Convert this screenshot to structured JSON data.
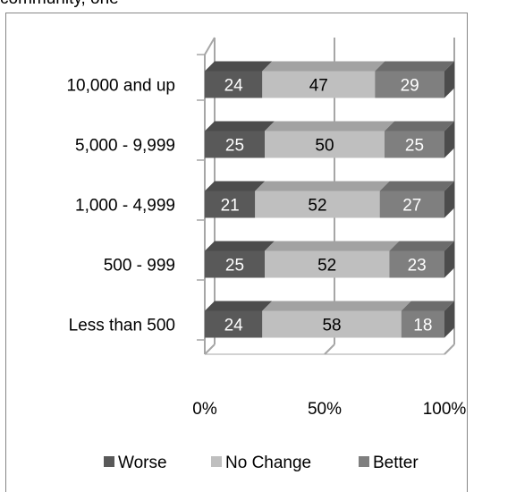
{
  "header_fragment": "community, one",
  "chart_data": {
    "type": "bar",
    "orientation": "horizontal",
    "stacked": "percent",
    "three_d": true,
    "categories": [
      "10,000 and up",
      "5,000 - 9,999",
      "1,000 - 4,999",
      "500 - 999",
      "Less than 500"
    ],
    "series": [
      {
        "name": "Worse",
        "values": [
          24,
          25,
          21,
          25,
          24
        ]
      },
      {
        "name": "No Change",
        "values": [
          47,
          50,
          52,
          52,
          58
        ]
      },
      {
        "name": "Better",
        "values": [
          29,
          25,
          27,
          23,
          18
        ]
      }
    ],
    "x_ticks": [
      "0%",
      "50%",
      "100%"
    ],
    "xlim": [
      0,
      100
    ],
    "legend_position": "bottom",
    "grid": "major vertical",
    "colors": {
      "Worse": "#595959",
      "No Change": "#bfbfbf",
      "Better": "#7f7f7f",
      "grid": "#a6a6a6",
      "frame": "#868686"
    }
  }
}
